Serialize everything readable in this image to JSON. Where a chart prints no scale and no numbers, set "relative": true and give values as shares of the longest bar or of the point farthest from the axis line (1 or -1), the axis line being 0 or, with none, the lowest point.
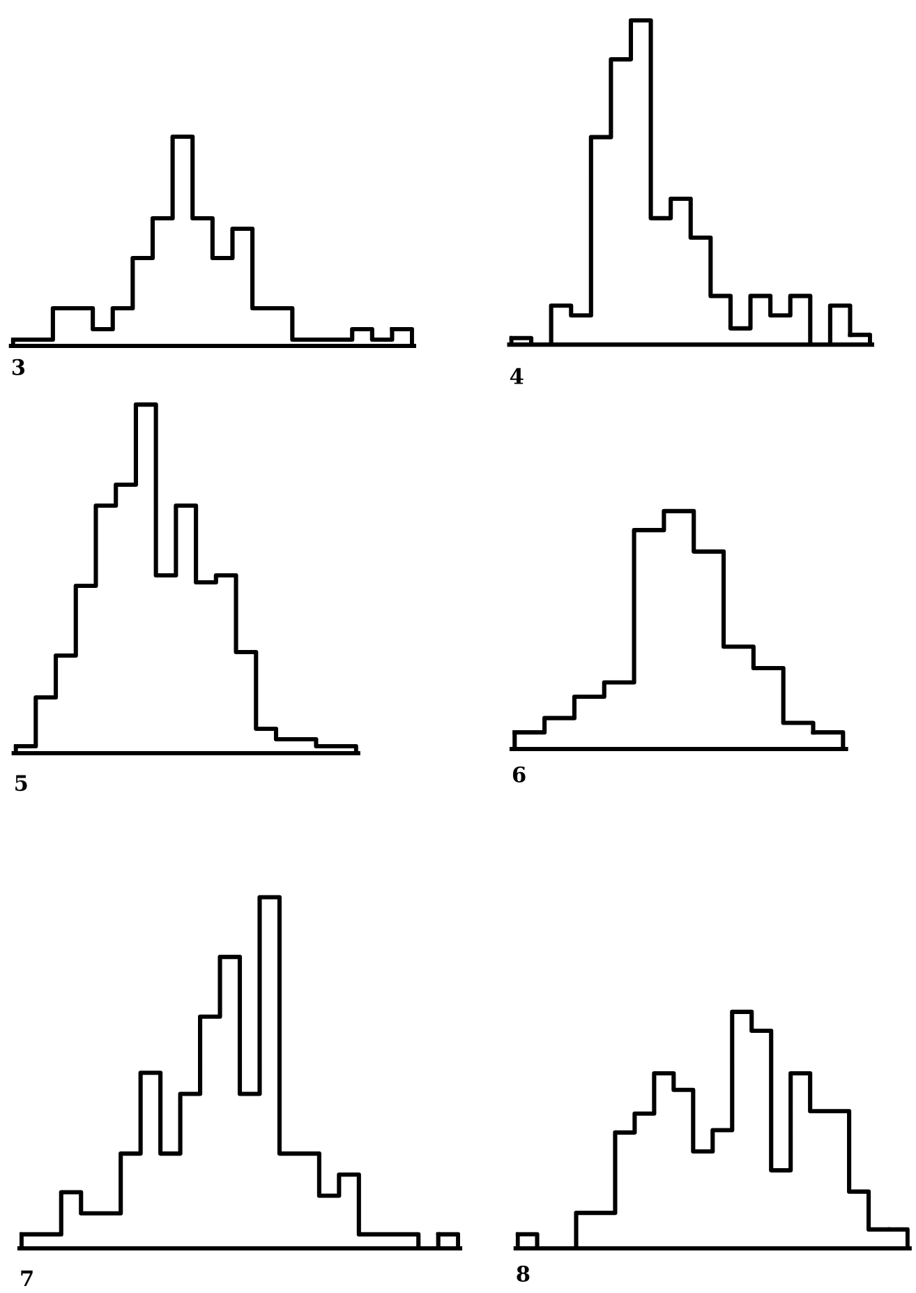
{
  "chart_data": [
    {
      "type": "step",
      "title": "3",
      "relative": true,
      "color": "#000000",
      "categories": [
        null,
        null,
        null,
        null,
        null,
        null,
        null,
        null,
        null,
        null,
        null,
        null,
        null,
        null,
        null,
        null,
        null,
        null,
        null,
        null
      ],
      "values": [
        0.03,
        0.03,
        0.18,
        0.18,
        0.08,
        0.18,
        0.42,
        0.61,
        1,
        0.61,
        0.42,
        0.56,
        0.18,
        0.18,
        0.03,
        0.03,
        0.03,
        0.08,
        0.03,
        0.08
      ]
    },
    {
      "type": "step",
      "title": "4",
      "relative": true,
      "color": "#000000",
      "categories": [
        null,
        null,
        null,
        null,
        null,
        null,
        null,
        null,
        null,
        null,
        null,
        null,
        null,
        null,
        null,
        null,
        null,
        null
      ],
      "values": [
        0.02,
        0,
        0.12,
        0.09,
        0.64,
        0.88,
        1,
        0.39,
        0.45,
        0.33,
        0.15,
        0.05,
        0.15,
        0.09,
        0.15,
        0,
        0.12,
        0.03
      ]
    },
    {
      "type": "step",
      "title": "5",
      "relative": true,
      "color": "#000000",
      "categories": [
        null,
        null,
        null,
        null,
        null,
        null,
        null,
        null,
        null,
        null,
        null,
        null,
        null,
        null,
        null,
        null,
        null
      ],
      "values": [
        0.02,
        0.16,
        0.28,
        0.48,
        0.71,
        0.77,
        1,
        0.51,
        0.71,
        0.49,
        0.51,
        0.29,
        0.07,
        0.04,
        0.04,
        0.02,
        0.02
      ]
    },
    {
      "type": "step",
      "title": "6",
      "relative": true,
      "color": "#000000",
      "categories": [
        null,
        null,
        null,
        null,
        null,
        null,
        null,
        null,
        null,
        null,
        null
      ],
      "values": [
        0.07,
        0.13,
        0.22,
        0.28,
        0.92,
        1,
        0.83,
        0.43,
        0.34,
        0.11,
        0.07
      ]
    },
    {
      "type": "step",
      "title": "7",
      "relative": true,
      "color": "#000000",
      "categories": [
        null,
        null,
        null,
        null,
        null,
        null,
        null,
        null,
        null,
        null,
        null,
        null,
        null,
        null,
        null,
        null,
        null,
        null,
        null,
        null,
        null,
        null
      ],
      "values": [
        0.04,
        0.04,
        0.16,
        0.1,
        0.1,
        0.27,
        0.5,
        0.27,
        0.44,
        0.66,
        0.83,
        0.44,
        1,
        0.27,
        0.27,
        0.15,
        0.21,
        0.04,
        0.04,
        0.04,
        0,
        0.04
      ]
    },
    {
      "type": "step",
      "title": "8",
      "relative": true,
      "color": "#000000",
      "categories": [
        null,
        null,
        null,
        null,
        null,
        null,
        null,
        null,
        null,
        null,
        null,
        null,
        null,
        null,
        null,
        null,
        null,
        null,
        null,
        null
      ],
      "values": [
        0.06,
        0,
        0,
        0.15,
        0.15,
        0.49,
        0.57,
        0.74,
        0.67,
        0.41,
        0.5,
        1,
        0.92,
        0.33,
        0.74,
        0.58,
        0.58,
        0.24,
        0.08,
        0.08
      ]
    }
  ]
}
